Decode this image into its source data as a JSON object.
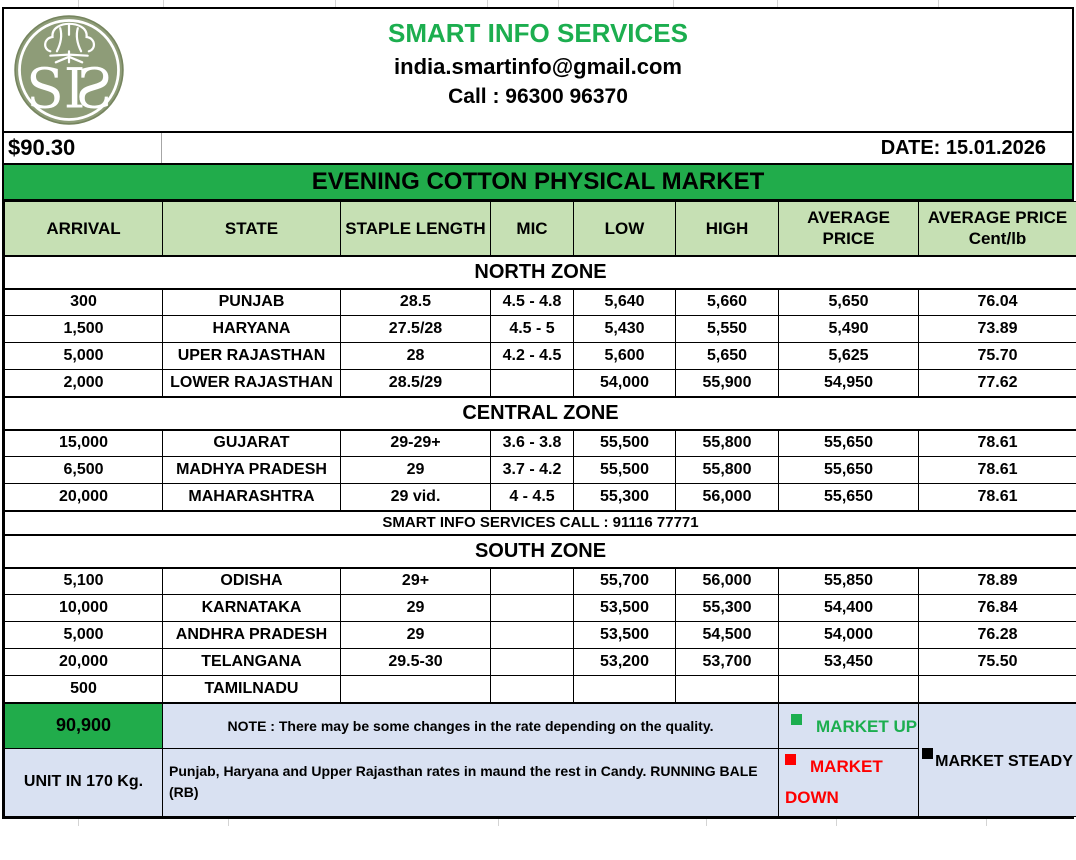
{
  "logo": {
    "monogram": "SIS"
  },
  "header": {
    "title": "SMART INFO SERVICES",
    "email": "india.smartinfo@gmail.com",
    "phone": "Call : 96300 96370"
  },
  "info_bar": {
    "price_usd": "$90.30",
    "date": "DATE: 15.01.2026"
  },
  "banner": {
    "title": "EVENING COTTON PHYSICAL MARKET"
  },
  "table": {
    "columns": [
      "ARRIVAL",
      "STATE",
      "STAPLE LENGTH",
      "MIC",
      "LOW",
      "HIGH",
      "AVERAGE PRICE"
    ],
    "last_column": {
      "line1": "AVERAGE PRICE",
      "line2": "Cent/lb"
    },
    "sections": [
      {
        "zone": "NORTH ZONE",
        "rows": [
          [
            "300",
            "PUNJAB",
            "28.5",
            "4.5 - 4.8",
            "5,640",
            "5,660",
            "5,650",
            "76.04"
          ],
          [
            "1,500",
            "HARYANA",
            "27.5/28",
            "4.5 - 5",
            "5,430",
            "5,550",
            "5,490",
            "73.89"
          ],
          [
            "5,000",
            "UPER RAJASTHAN",
            "28",
            "4.2 - 4.5",
            "5,600",
            "5,650",
            "5,625",
            "75.70"
          ],
          [
            "2,000",
            "LOWER RAJASTHAN",
            "28.5/29",
            "",
            "54,000",
            "55,900",
            "54,950",
            "77.62"
          ]
        ]
      },
      {
        "zone": "CENTRAL ZONE",
        "rows": [
          [
            "15,000",
            "GUJARAT",
            "29-29+",
            "3.6 - 3.8",
            "55,500",
            "55,800",
            "55,650",
            "78.61"
          ],
          [
            "6,500",
            "MADHYA PRADESH",
            "29",
            "3.7 - 4.2",
            "55,500",
            "55,800",
            "55,650",
            "78.61"
          ],
          [
            "20,000",
            "MAHARASHTRA",
            "29 vid.",
            "4 - 4.5",
            "55,300",
            "56,000",
            "55,650",
            "78.61"
          ]
        ],
        "footer_note": "SMART INFO SERVICES CALL : 91116 77771"
      },
      {
        "zone": "SOUTH ZONE",
        "rows": [
          [
            "5,100",
            "ODISHA",
            "29+",
            "",
            "55,700",
            "56,000",
            "55,850",
            "78.89"
          ],
          [
            "10,000",
            "KARNATAKA",
            "29",
            "",
            "53,500",
            "55,300",
            "54,400",
            "76.84"
          ],
          [
            "5,000",
            "ANDHRA PRADESH",
            "29",
            "",
            "53,500",
            "54,500",
            "54,000",
            "76.28"
          ],
          [
            "20,000",
            "TELANGANA",
            "29.5-30",
            "",
            "53,200",
            "53,700",
            "53,450",
            "75.50"
          ],
          [
            "500",
            "TAMILNADU",
            "",
            "",
            "",
            "",
            "",
            ""
          ]
        ]
      }
    ]
  },
  "footer": {
    "total_arrival": "90,900",
    "note": "NOTE : There may be some changes in the rate depending on the quality.",
    "unit_label": "UNIT IN 170 Kg.",
    "unit_note": "Punjab, Haryana and Upper Rajasthan rates in maund the rest in Candy. RUNNING BALE (RB)",
    "legend": {
      "up": "MARKET UP",
      "down": "MARKET DOWN",
      "steady": "MARKET STEADY"
    }
  },
  "colors": {
    "banner_green": "#21AC4B",
    "header_light_green": "#C6E0B4",
    "panel_lavender": "#D9E1F2",
    "market_up_green": "#1CAE4F",
    "market_down_red": "#FE0000",
    "title_green": "#1CAE4F",
    "logo_sage": "#8E9C78"
  }
}
